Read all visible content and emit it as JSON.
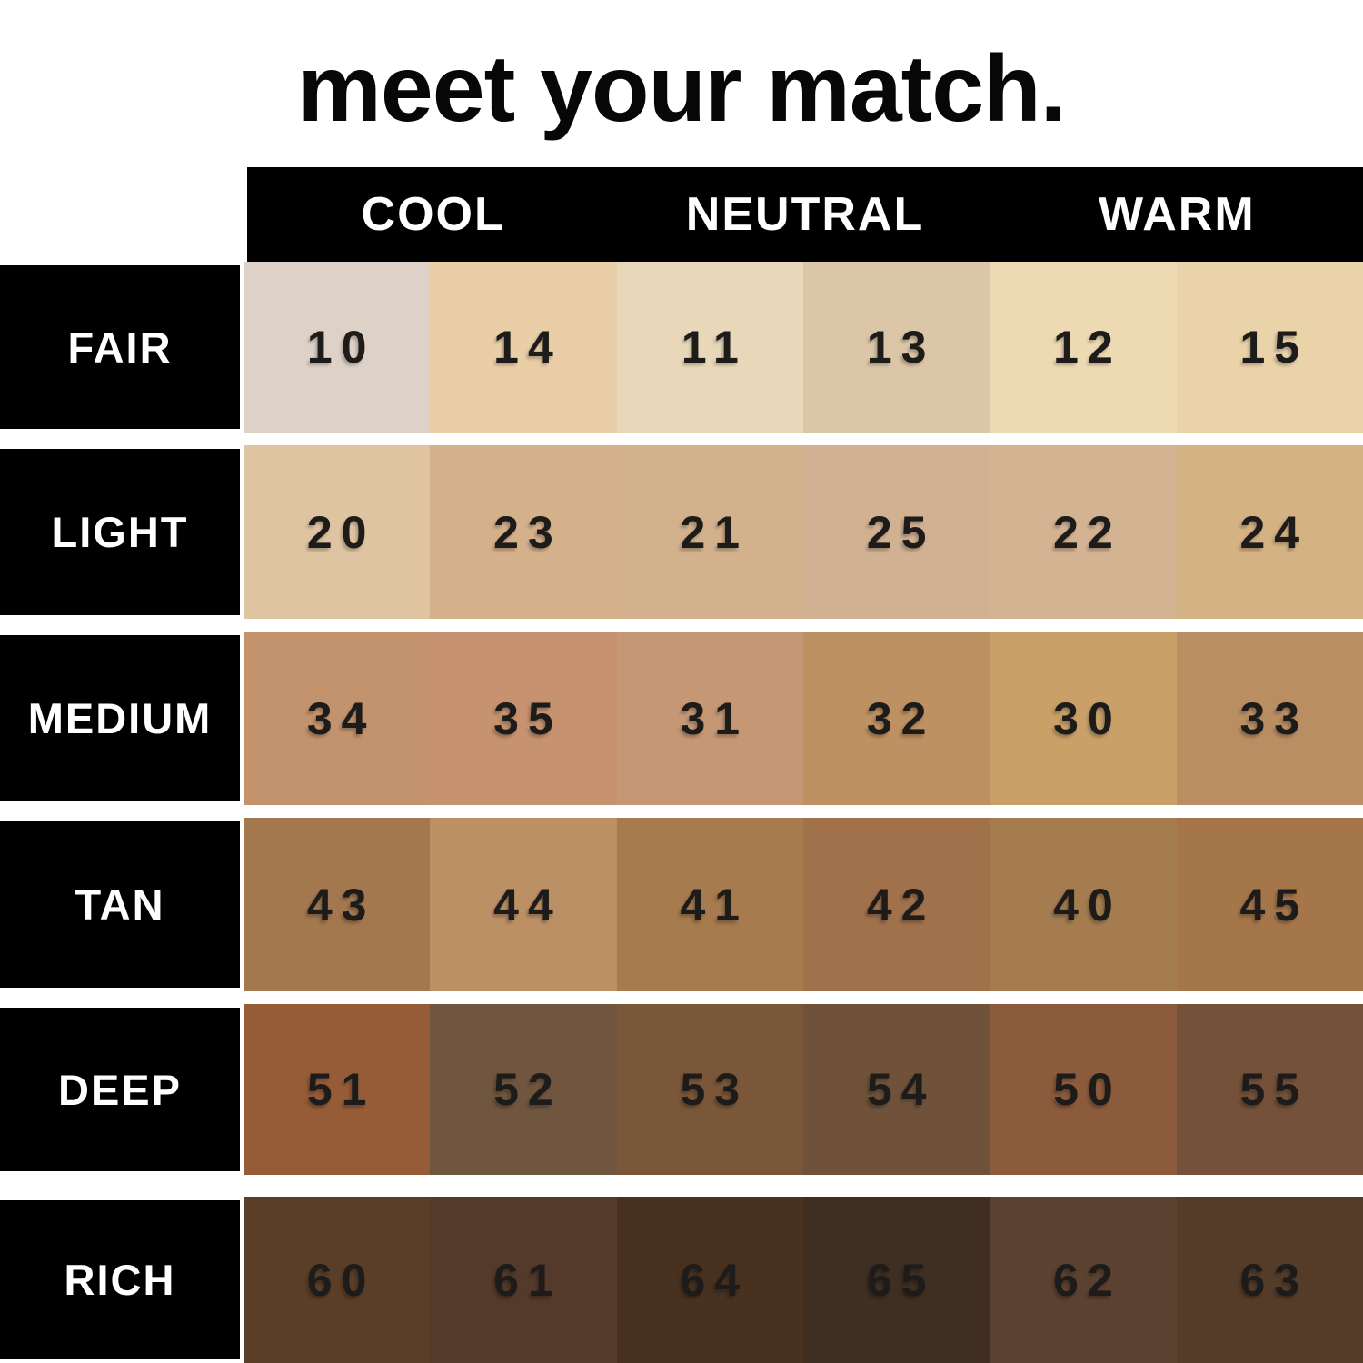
{
  "title": "meet your match.",
  "colors": {
    "background": "#ffffff",
    "bar": "#000000",
    "header_text": "#ffffff",
    "number_text": "#1d1c1a"
  },
  "undertone_headers": [
    "COOL",
    "NEUTRAL",
    "WARM"
  ],
  "rows": [
    {
      "label": "FAIR",
      "shades": [
        {
          "num": "10",
          "color": "#ded2c8"
        },
        {
          "num": "14",
          "color": "#eacea7"
        },
        {
          "num": "11",
          "color": "#e8d8b9"
        },
        {
          "num": "13",
          "color": "#dcc6a8"
        },
        {
          "num": "12",
          "color": "#eddab3"
        },
        {
          "num": "15",
          "color": "#ead2a9"
        }
      ]
    },
    {
      "label": "LIGHT",
      "shades": [
        {
          "num": "20",
          "color": "#dfc4a2"
        },
        {
          "num": "23",
          "color": "#d5b18b"
        },
        {
          "num": "21",
          "color": "#d3b18c"
        },
        {
          "num": "25",
          "color": "#d1b192"
        },
        {
          "num": "22",
          "color": "#d3b392"
        },
        {
          "num": "24",
          "color": "#d5b283"
        }
      ]
    },
    {
      "label": "MEDIUM",
      "shades": [
        {
          "num": "34",
          "color": "#c3936d"
        },
        {
          "num": "35",
          "color": "#c6926f"
        },
        {
          "num": "31",
          "color": "#c59775"
        },
        {
          "num": "32",
          "color": "#bd9161"
        },
        {
          "num": "30",
          "color": "#c8a068"
        },
        {
          "num": "33",
          "color": "#b98e62"
        }
      ]
    },
    {
      "label": "TAN",
      "shades": [
        {
          "num": "43",
          "color": "#a3784f"
        },
        {
          "num": "44",
          "color": "#bc9065"
        },
        {
          "num": "41",
          "color": "#a67b4d"
        },
        {
          "num": "42",
          "color": "#a1714c"
        },
        {
          "num": "40",
          "color": "#a47c50"
        },
        {
          "num": "45",
          "color": "#a5764a"
        }
      ]
    },
    {
      "label": "DEEP",
      "shades": [
        {
          "num": "51",
          "color": "#965c38"
        },
        {
          "num": "52",
          "color": "#70553f"
        },
        {
          "num": "53",
          "color": "#7b5739"
        },
        {
          "num": "54",
          "color": "#6f5239"
        },
        {
          "num": "50",
          "color": "#8b5b3b"
        },
        {
          "num": "55",
          "color": "#745138"
        }
      ]
    },
    {
      "label": "RICH",
      "shades": [
        {
          "num": "60",
          "color": "#5a3e28"
        },
        {
          "num": "61",
          "color": "#533a2b"
        },
        {
          "num": "64",
          "color": "#48311f"
        },
        {
          "num": "65",
          "color": "#3f2f22"
        },
        {
          "num": "62",
          "color": "#5b4130"
        },
        {
          "num": "63",
          "color": "#553c29"
        }
      ]
    }
  ],
  "chart_data": {
    "type": "table",
    "title": "meet your match.",
    "column_groups": [
      "COOL",
      "NEUTRAL",
      "WARM"
    ],
    "columns_per_group": 2,
    "row_categories": [
      "FAIR",
      "LIGHT",
      "MEDIUM",
      "TAN",
      "DEEP",
      "RICH"
    ],
    "shade_numbers": [
      [
        10,
        14,
        11,
        13,
        12,
        15
      ],
      [
        20,
        23,
        21,
        25,
        22,
        24
      ],
      [
        34,
        35,
        31,
        32,
        30,
        33
      ],
      [
        43,
        44,
        41,
        42,
        40,
        45
      ],
      [
        51,
        52,
        53,
        54,
        50,
        55
      ],
      [
        60,
        61,
        64,
        65,
        62,
        63
      ]
    ],
    "swatch_colors": [
      [
        "#ded2c8",
        "#eacea7",
        "#e8d8b9",
        "#dcc6a8",
        "#eddab3",
        "#ead2a9"
      ],
      [
        "#dfc4a2",
        "#d5b18b",
        "#d3b18c",
        "#d1b192",
        "#d3b392",
        "#d5b283"
      ],
      [
        "#c3936d",
        "#c6926f",
        "#c59775",
        "#bd9161",
        "#c8a068",
        "#b98e62"
      ],
      [
        "#a3784f",
        "#bc9065",
        "#a67b4d",
        "#a1714c",
        "#a47c50",
        "#a5764a"
      ],
      [
        "#965c38",
        "#70553f",
        "#7b5739",
        "#6f5239",
        "#8b5b3b",
        "#745138"
      ],
      [
        "#5a3e28",
        "#533a2b",
        "#48311f",
        "#3f2f22",
        "#5b4130",
        "#553c29"
      ]
    ],
    "legend_position": "none",
    "grid": false
  }
}
